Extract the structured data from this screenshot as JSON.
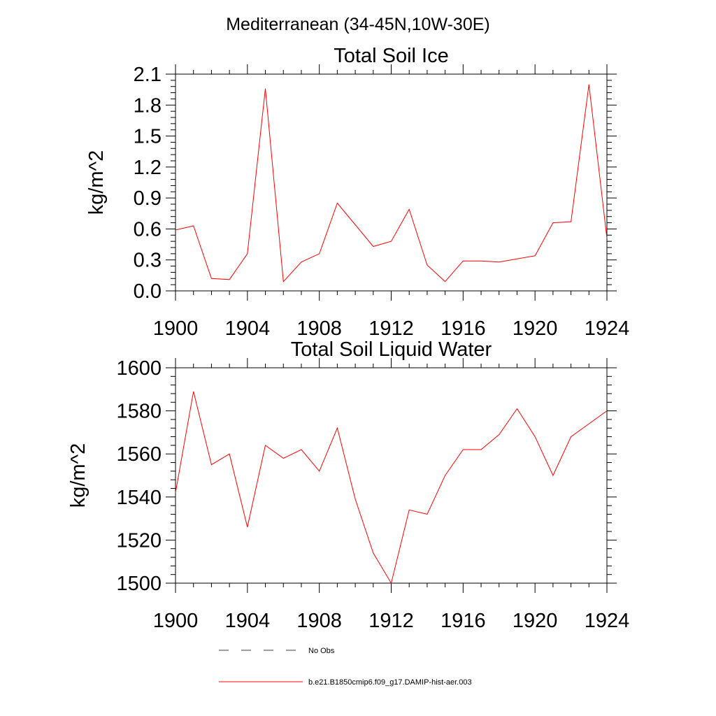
{
  "figure": {
    "suptitle": "Mediterranean (34-45N,10W-30E)"
  },
  "colors": {
    "model_line": "#ff0000",
    "obs_line": "#3a3a5a",
    "axis": "#000000"
  },
  "legend": {
    "placement": "bottom",
    "entries": [
      {
        "label": "No Obs",
        "style": "dashed",
        "color": "#3a3a5a"
      },
      {
        "label": "b.e21.B1850cmip6.f09_g17.DAMIP-hist-aer.003",
        "style": "solid",
        "color": "#ff0000"
      }
    ]
  },
  "chart_data": [
    {
      "type": "line",
      "title": "Total Soil Ice",
      "xlabel": "",
      "ylabel": "kg/m^2",
      "xlim": [
        1900,
        1924
      ],
      "ylim": [
        0.0,
        2.1
      ],
      "xticks": [
        1900,
        1904,
        1908,
        1912,
        1916,
        1920,
        1924
      ],
      "yticks": [
        "0.0",
        "0.3",
        "0.6",
        "0.9",
        "1.2",
        "1.5",
        "1.8",
        "2.1"
      ],
      "grid": false,
      "x": [
        1900,
        1901,
        1902,
        1903,
        1904,
        1905,
        1906,
        1907,
        1908,
        1909,
        1910,
        1911,
        1912,
        1913,
        1914,
        1915,
        1916,
        1917,
        1918,
        1919,
        1920,
        1921,
        1922,
        1923,
        1924
      ],
      "series": [
        {
          "color": "#ff0000",
          "values": [
            0.59,
            0.63,
            0.12,
            0.11,
            0.36,
            1.96,
            0.09,
            0.28,
            0.36,
            0.85,
            0.64,
            0.43,
            0.48,
            0.79,
            0.25,
            0.09,
            0.29,
            0.29,
            0.28,
            0.31,
            0.34,
            0.66,
            0.67,
            2.0,
            0.51
          ]
        }
      ]
    },
    {
      "type": "line",
      "title": "Total Soil Liquid Water",
      "xlabel": "",
      "ylabel": "kg/m^2",
      "xlim": [
        1900,
        1924
      ],
      "ylim": [
        1500,
        1600
      ],
      "xticks": [
        1900,
        1904,
        1908,
        1912,
        1916,
        1920,
        1924
      ],
      "yticks": [
        "1500",
        "1520",
        "1540",
        "1560",
        "1580",
        "1600"
      ],
      "grid": false,
      "x": [
        1900,
        1901,
        1902,
        1903,
        1904,
        1905,
        1906,
        1907,
        1908,
        1909,
        1910,
        1911,
        1912,
        1913,
        1914,
        1915,
        1916,
        1917,
        1918,
        1919,
        1920,
        1921,
        1922,
        1923,
        1924
      ],
      "series": [
        {
          "color": "#ff0000",
          "values": [
            1542,
            1589,
            1555,
            1560,
            1526,
            1564,
            1558,
            1562,
            1552,
            1572,
            1539,
            1514,
            1500,
            1534,
            1532,
            1550,
            1562,
            1562,
            1569,
            1581,
            1568,
            1550,
            1568,
            1574,
            1580
          ]
        }
      ]
    }
  ]
}
